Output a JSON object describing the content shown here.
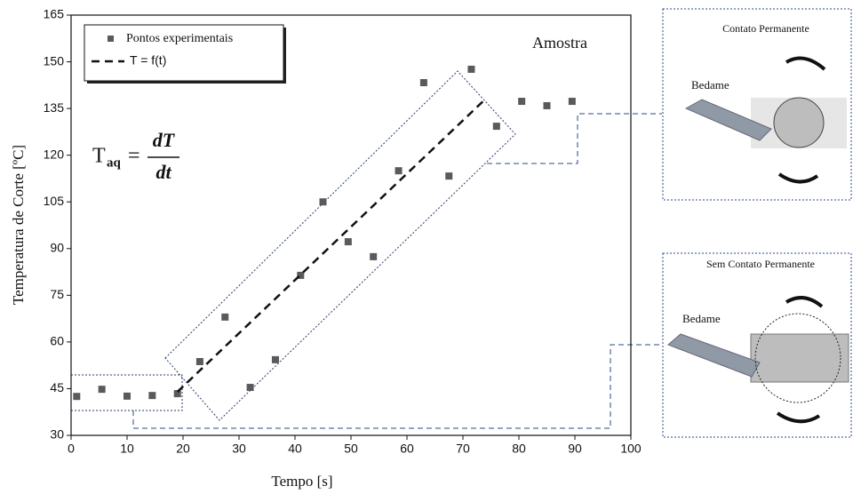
{
  "chart_data": {
    "type": "scatter",
    "xlabel": "Tempo [s]",
    "ylabel": "Temperatura de Corte [ºC]",
    "xlim": [
      0,
      100
    ],
    "ylim": [
      30,
      165
    ],
    "xticks": [
      0,
      10,
      20,
      30,
      40,
      50,
      60,
      70,
      80,
      90,
      100
    ],
    "yticks": [
      30,
      45,
      60,
      75,
      90,
      105,
      120,
      135,
      150,
      165
    ],
    "series": [
      {
        "name": "Pontos experimentais",
        "color": "#5a5a5a",
        "x": [
          1,
          5.5,
          10,
          14.5,
          19,
          23,
          27.5,
          32,
          36.5,
          41,
          45,
          49.5,
          54,
          58.5,
          63,
          67.5,
          71.5,
          76,
          80.5,
          85,
          89.5
        ],
        "values": [
          42.5,
          44.8,
          42.6,
          42.8,
          43.4,
          53.7,
          68,
          45.4,
          54.3,
          81.4,
          105,
          92.2,
          87.4,
          115,
          143.3,
          113.3,
          147.6,
          129.3,
          137.3,
          135.9,
          137.3
        ]
      },
      {
        "name": "T = f(t)",
        "color": "#111111",
        "x": [
          19,
          74
        ],
        "values": [
          44,
          138
        ]
      }
    ],
    "annotations": {
      "sample": "Amostra",
      "formula": {
        "lhs": "T",
        "sub": "aq",
        "eq": "=",
        "num": "dT",
        "den": "dt"
      }
    },
    "panels": [
      {
        "title": "Contato Permanente",
        "tool": "Bedame"
      },
      {
        "title": "Sem Contato Permanente",
        "tool": "Bedame"
      }
    ]
  }
}
